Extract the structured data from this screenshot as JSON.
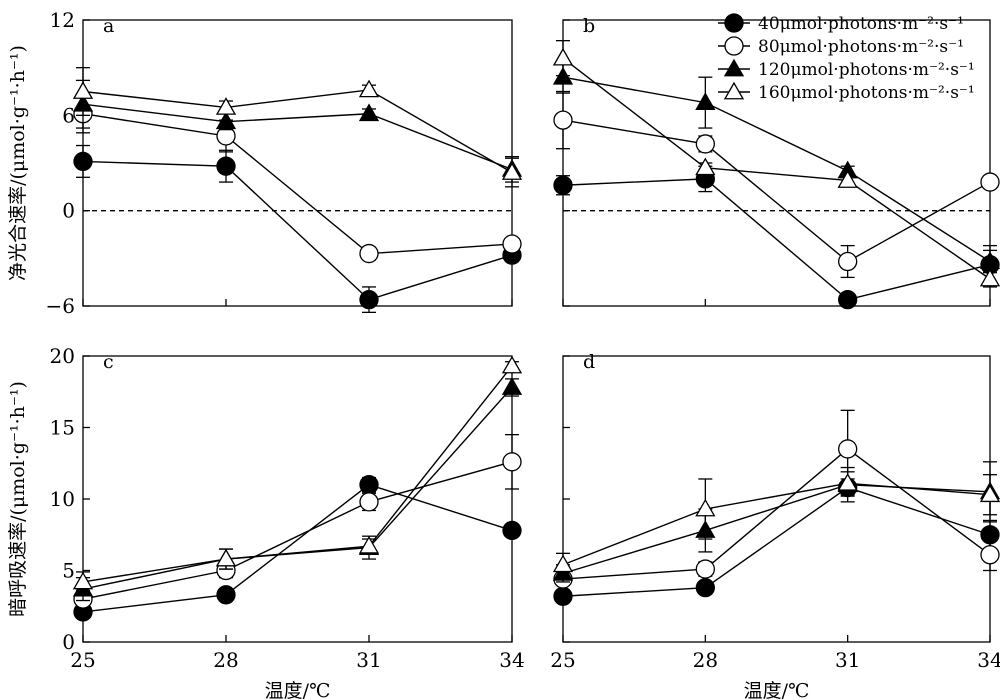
{
  "legend": [
    {
      "label": "40μmol·photons·m⁻²·s⁻¹",
      "marker": "circle",
      "fill": "#000000"
    },
    {
      "label": "80μmol·photons·m⁻²·s⁻¹",
      "marker": "circle",
      "fill": "#ffffff"
    },
    {
      "label": "120μmol·photons·m⁻²·s⁻¹",
      "marker": "triangle",
      "fill": "#000000"
    },
    {
      "label": "160μmol·photons·m⁻²·s⁻¹",
      "marker": "triangle",
      "fill": "#ffffff"
    }
  ],
  "chart_data": [
    {
      "type": "line",
      "panel_label": "a",
      "ylabel": "净光合速率/(μmol·g⁻¹·h⁻¹)",
      "xlabel": "",
      "x": [
        25,
        28,
        31,
        34
      ],
      "xlim": [
        25,
        34
      ],
      "ylim": [
        -6,
        12
      ],
      "yticks": [
        -6,
        0,
        6,
        12
      ],
      "ytick_labels": [
        "−6",
        "0",
        "6",
        "12"
      ],
      "xticks": [
        25,
        28,
        31,
        34
      ],
      "xtick_labels": [],
      "zero_line": true,
      "series": [
        {
          "values": [
            3.1,
            2.8,
            -5.6,
            -2.8
          ],
          "errors": [
            1.0,
            1.0,
            0.8,
            0.4
          ]
        },
        {
          "values": [
            6.1,
            4.7,
            -2.7,
            -2.1
          ],
          "errors": [
            1.2,
            1.0,
            0.4,
            0.3
          ]
        },
        {
          "values": [
            6.7,
            5.6,
            6.1,
            2.6
          ],
          "errors": [
            1.5,
            0.5,
            0.3,
            0.8
          ]
        },
        {
          "values": [
            7.5,
            6.5,
            7.6,
            2.4
          ],
          "errors": [
            1.5,
            0.4,
            0.3,
            0.9
          ]
        }
      ]
    },
    {
      "type": "line",
      "panel_label": "b",
      "ylabel": "",
      "xlabel": "",
      "x": [
        25,
        28,
        31,
        34
      ],
      "xlim": [
        25,
        34
      ],
      "ylim": [
        -6,
        12
      ],
      "yticks": [
        -6,
        0,
        6,
        12
      ],
      "ytick_labels": [],
      "xticks": [
        25,
        28,
        31,
        34
      ],
      "xtick_labels": [],
      "zero_line": true,
      "series": [
        {
          "values": [
            1.6,
            2.0,
            -5.6,
            -3.4
          ],
          "errors": [
            0.6,
            0.8,
            0.3,
            1.2
          ]
        },
        {
          "values": [
            5.7,
            4.2,
            -3.2,
            1.8
          ],
          "errors": [
            1.8,
            0.5,
            1.0,
            0.3
          ]
        },
        {
          "values": [
            8.4,
            6.8,
            2.5,
            -3.2
          ],
          "errors": [
            1.0,
            1.6,
            0.3,
            0.7
          ]
        },
        {
          "values": [
            9.6,
            2.7,
            1.9,
            -4.3
          ],
          "errors": [
            1.1,
            0.3,
            0.3,
            0.5
          ]
        }
      ]
    },
    {
      "type": "line",
      "panel_label": "c",
      "ylabel": "暗呼吸速率/(μmol·g⁻¹·h⁻¹)",
      "xlabel": "温度/℃",
      "x": [
        25,
        28,
        31,
        34
      ],
      "xlim": [
        25,
        34
      ],
      "ylim": [
        0,
        20
      ],
      "yticks": [
        0,
        5,
        10,
        15,
        20
      ],
      "ytick_labels": [
        "0",
        "5",
        "10",
        "15",
        "20"
      ],
      "xticks": [
        25,
        28,
        31,
        34
      ],
      "xtick_labels": [
        "25",
        "28",
        "31",
        "34"
      ],
      "zero_line": false,
      "series": [
        {
          "values": [
            2.1,
            3.3,
            11.0,
            7.8
          ],
          "errors": [
            0.3,
            0.4,
            0.5,
            0.3
          ]
        },
        {
          "values": [
            3.0,
            5.0,
            9.8,
            12.6
          ],
          "errors": [
            0.6,
            0.5,
            0.6,
            1.9
          ]
        },
        {
          "values": [
            3.7,
            5.8,
            6.6,
            17.8
          ],
          "errors": [
            0.8,
            0.7,
            0.8,
            0.6
          ]
        },
        {
          "values": [
            4.2,
            5.8,
            6.7,
            19.3
          ],
          "errors": [
            0.7,
            0.7,
            0.5,
            0.3
          ]
        }
      ]
    },
    {
      "type": "line",
      "panel_label": "d",
      "ylabel": "",
      "xlabel": "温度/℃",
      "x": [
        25,
        28,
        31,
        34
      ],
      "xlim": [
        25,
        34
      ],
      "ylim": [
        0,
        20
      ],
      "yticks": [
        0,
        5,
        10,
        15,
        20
      ],
      "ytick_labels": [],
      "xticks": [
        25,
        28,
        31,
        34
      ],
      "xtick_labels": [
        "25",
        "28",
        "31",
        "34"
      ],
      "zero_line": false,
      "series": [
        {
          "values": [
            3.2,
            3.8,
            10.8,
            7.5
          ],
          "errors": [
            0.4,
            0.3,
            0.6,
            1.0
          ]
        },
        {
          "values": [
            4.4,
            5.1,
            13.5,
            6.1
          ],
          "errors": [
            0.8,
            0.5,
            2.7,
            1.1
          ]
        },
        {
          "values": [
            4.8,
            7.8,
            11.0,
            10.5
          ],
          "errors": [
            0.6,
            1.5,
            1.2,
            2.1
          ]
        },
        {
          "values": [
            5.4,
            9.3,
            11.1,
            10.3
          ],
          "errors": [
            0.8,
            2.1,
            0.8,
            1.4
          ]
        }
      ]
    }
  ]
}
